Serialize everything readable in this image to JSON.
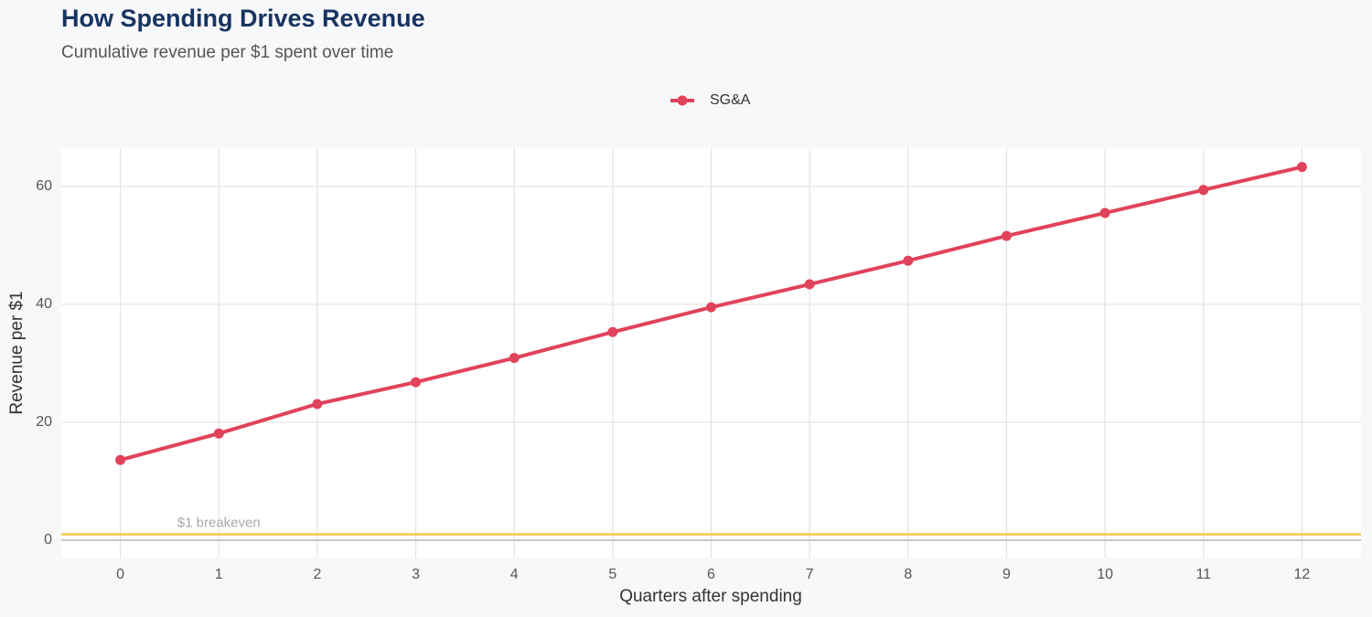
{
  "chart_data": {
    "type": "line",
    "title": "How Spending Drives Revenue",
    "subtitle": "Cumulative revenue per $1 spent over time",
    "xlabel": "Quarters after spending",
    "ylabel": "Revenue per $1",
    "x": [
      0,
      1,
      2,
      3,
      4,
      5,
      6,
      7,
      8,
      9,
      10,
      11,
      12
    ],
    "series": [
      {
        "name": "SG&A",
        "color": "#e0435a",
        "values": [
          13.6,
          18.1,
          23.1,
          26.8,
          30.9,
          35.3,
          39.5,
          43.4,
          47.4,
          51.6,
          55.5,
          59.4,
          63.3
        ]
      }
    ],
    "xlim": [
      -0.6,
      12.6
    ],
    "xticks": [
      0,
      1,
      2,
      3,
      4,
      5,
      6,
      7,
      8,
      9,
      10,
      11,
      12
    ],
    "ylim": [
      -2.95,
      66.5
    ],
    "yticks": [
      0,
      20,
      40,
      60
    ],
    "grid": true,
    "legend": "top",
    "reference_line": {
      "value": 1,
      "label": "$1 breakeven",
      "color": "#f7c948"
    }
  }
}
